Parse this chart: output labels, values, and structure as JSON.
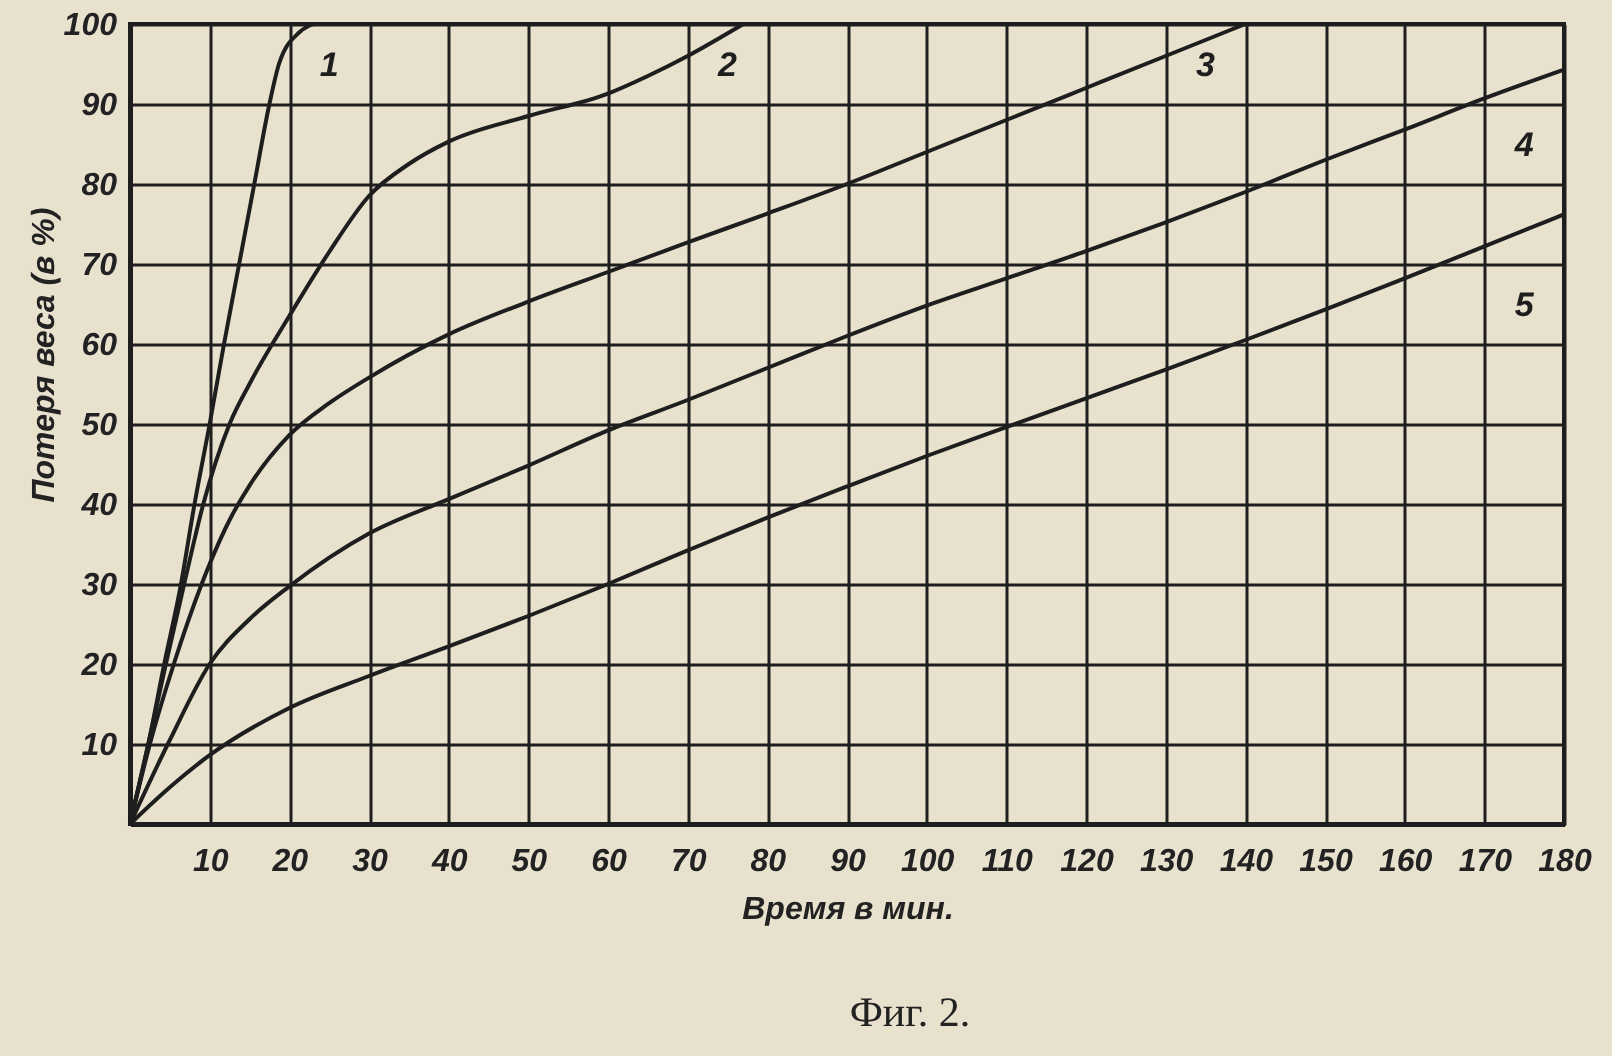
{
  "chart_data": {
    "type": "line",
    "xlabel": "Время в мин.",
    "ylabel": "Потеря веса (в %)",
    "annotations": [
      "Фиг. 2."
    ],
    "xlim": [
      0,
      180
    ],
    "ylim": [
      0,
      100
    ],
    "xticks": [
      10,
      20,
      30,
      40,
      50,
      60,
      70,
      80,
      90,
      100,
      110,
      120,
      130,
      140,
      150,
      160,
      170,
      180
    ],
    "yticks": [
      10,
      20,
      30,
      40,
      50,
      60,
      70,
      80,
      90,
      100
    ],
    "grid": true,
    "line_style": "solid",
    "series": [
      {
        "name": "1",
        "color": "#1e1e1e",
        "x": [
          0,
          2.3,
          4.3,
          6.4,
          8.1,
          10,
          11.8,
          13.7,
          15.6,
          17.5,
          18.7,
          21.3,
          23
        ],
        "values": [
          0,
          10,
          20,
          30,
          40,
          50,
          60,
          70,
          80,
          90,
          95,
          99,
          100
        ]
      },
      {
        "name": "2",
        "color": "#1e1e1e",
        "x": [
          0,
          2.3,
          4.5,
          6.8,
          9.2,
          12.5,
          15,
          20,
          25,
          30,
          35,
          40,
          50,
          60,
          65,
          70,
          77
        ],
        "values": [
          0,
          10,
          20,
          30,
          40,
          50,
          55,
          63.5,
          71.5,
          78.5,
          82.5,
          85.3,
          88.5,
          91.3,
          93.5,
          96,
          100
        ]
      },
      {
        "name": "3",
        "color": "#1e1e1e",
        "x": [
          0,
          2.5,
          5.5,
          9,
          10,
          12.5,
          15,
          20,
          25,
          30,
          40,
          50,
          60,
          70,
          80,
          90,
          100,
          110,
          120,
          130,
          140
        ],
        "values": [
          0,
          10,
          20,
          30,
          32.5,
          38,
          42.3,
          48.6,
          52.6,
          55.8,
          61.2,
          65.3,
          69,
          72.7,
          76.3,
          80,
          84,
          88,
          92,
          96,
          100
        ]
      },
      {
        "name": "4",
        "color": "#1e1e1e",
        "x": [
          0,
          5,
          10,
          15,
          20,
          30,
          40,
          50,
          60,
          70,
          80,
          90,
          100,
          110,
          120,
          130,
          140,
          150,
          160,
          170,
          180
        ],
        "values": [
          0,
          10.5,
          20,
          25.6,
          29.7,
          36.3,
          40.6,
          44.8,
          49.2,
          53,
          57,
          61,
          64.8,
          68.2,
          71.6,
          75.2,
          79,
          83,
          86.8,
          90.7,
          94.3
        ]
      },
      {
        "name": "5",
        "color": "#1e1e1e",
        "x": [
          0,
          5,
          10,
          20,
          30,
          40,
          50,
          60,
          70,
          80,
          90,
          100,
          110,
          120,
          130,
          140,
          150,
          160,
          170,
          180
        ],
        "values": [
          0,
          4.6,
          8.6,
          14.5,
          18.5,
          22.2,
          26,
          30,
          34.2,
          38.3,
          42.2,
          46,
          49.6,
          53.2,
          56.8,
          60.5,
          64.3,
          68.2,
          72.2,
          76.2
        ]
      }
    ]
  }
}
